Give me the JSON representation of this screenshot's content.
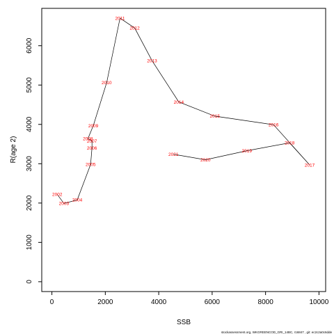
{
  "chart_data": {
    "type": "line",
    "xlabel": "SSB",
    "ylabel": "R(age 2)",
    "xlim": [
      -380,
      10250
    ],
    "ylim": [
      -250,
      6950
    ],
    "x_ticks": [
      0,
      2000,
      4000,
      6000,
      8000,
      10000
    ],
    "y_ticks": [
      0,
      1000,
      2000,
      3000,
      4000,
      5000,
      6000
    ],
    "grid": false,
    "point_label_color": "#ff0000",
    "line_color": "#000000",
    "points": [
      {
        "label": "2002",
        "x": 200,
        "y": 2220
      },
      {
        "label": "2003",
        "x": 450,
        "y": 1990
      },
      {
        "label": "2004",
        "x": 950,
        "y": 2080
      },
      {
        "label": "2005",
        "x": 1450,
        "y": 2980
      },
      {
        "label": "2006",
        "x": 1500,
        "y": 3400
      },
      {
        "label": "2007",
        "x": 1500,
        "y": 3580
      },
      {
        "label": "2008",
        "x": 1350,
        "y": 3640
      },
      {
        "label": "2009",
        "x": 1550,
        "y": 3970
      },
      {
        "label": "2010",
        "x": 2050,
        "y": 5060
      },
      {
        "label": "2011",
        "x": 2550,
        "y": 6700
      },
      {
        "label": "2012",
        "x": 3100,
        "y": 6450
      },
      {
        "label": "2013",
        "x": 3750,
        "y": 5620
      },
      {
        "label": "2014",
        "x": 4750,
        "y": 4570
      },
      {
        "label": "2015",
        "x": 6100,
        "y": 4210
      },
      {
        "label": "2016",
        "x": 8300,
        "y": 3990
      },
      {
        "label": "2017",
        "x": 9650,
        "y": 2970
      },
      {
        "label": "2018",
        "x": 8900,
        "y": 3530
      },
      {
        "label": "2019",
        "x": 7300,
        "y": 3330
      },
      {
        "label": "2020",
        "x": 5750,
        "y": 3100
      },
      {
        "label": "2021",
        "x": 4550,
        "y": 3240
      }
    ]
  },
  "footer": "stockassessment.org, WKGREENCOD_GRI_14BC, r16847 , git: ec2c2a0c6dde"
}
